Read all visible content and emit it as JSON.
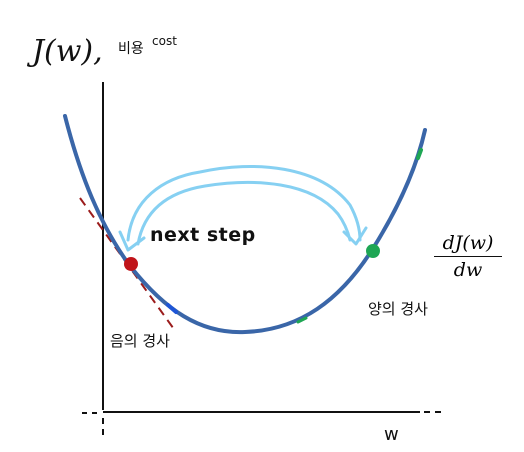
{
  "labels": {
    "cost_function": "J(w),",
    "cost_korean": "비용",
    "cost_english": "cost",
    "next_step": "next step",
    "negative_slope": "음의 경사",
    "positive_slope": "양의 경사",
    "w_axis": "w",
    "derivative_numerator": "dJ(w)",
    "derivative_denominator": "dw"
  },
  "colors": {
    "curve": "#3a66a8",
    "tangent": "#9b1c1c",
    "left_point": "#c0141a",
    "right_point": "#1ea654",
    "arrow": "#86d0f2",
    "axis": "#111111",
    "small_marks_blue": "#1e55d6",
    "small_marks_green": "#1ea654"
  }
}
